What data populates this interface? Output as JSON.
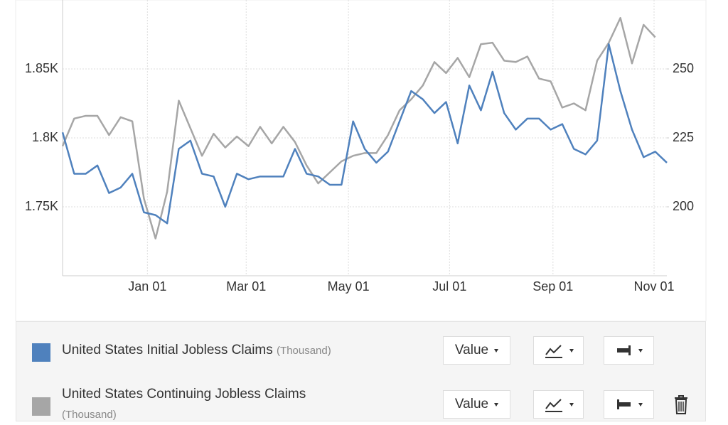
{
  "chart_data": {
    "type": "line",
    "x": [
      0,
      1,
      2,
      3,
      4,
      5,
      6,
      7,
      8,
      9,
      10,
      11,
      12,
      13,
      14,
      15,
      16,
      17,
      18,
      19,
      20,
      21,
      22,
      23,
      24,
      25,
      26,
      27,
      28,
      29,
      30,
      31,
      32,
      33,
      34,
      35,
      36,
      37,
      38,
      39,
      40,
      41,
      42,
      43,
      44,
      45,
      46,
      47,
      48,
      49,
      50,
      51,
      52
    ],
    "xlim": [
      0,
      52
    ],
    "xticks": [
      {
        "value": 7.3,
        "label": "Jan 01"
      },
      {
        "value": 15.8,
        "label": "Mar 01"
      },
      {
        "value": 24.6,
        "label": "May 01"
      },
      {
        "value": 33.3,
        "label": "Jul 01"
      },
      {
        "value": 42.2,
        "label": "Sep 01"
      },
      {
        "value": 50.9,
        "label": "Nov 01"
      }
    ],
    "ylim": [
      1700,
      1900
    ],
    "yticks": [
      {
        "value": 1750,
        "label": "1.75K"
      },
      {
        "value": 1800,
        "label": "1.8K"
      },
      {
        "value": 1850,
        "label": "1.85K"
      }
    ],
    "y2lim": [
      175,
      275
    ],
    "y2ticks": [
      200,
      225,
      250
    ],
    "grid": true,
    "unit": "(Thousand)",
    "series": [
      {
        "name": "United States Initial Jobless Claims",
        "color": "#4f81bd",
        "axis": "y2",
        "values": [
          227,
          212,
          212,
          215,
          205,
          207,
          212,
          198,
          197,
          194,
          221,
          224,
          212,
          211,
          200,
          212,
          210,
          211,
          211,
          211,
          221,
          212,
          211,
          208,
          208,
          231,
          221,
          216,
          220,
          231,
          242,
          239,
          234,
          238,
          223,
          244,
          235,
          249,
          234,
          228,
          232,
          232,
          228,
          230,
          221,
          219,
          224,
          259,
          242,
          228,
          218,
          220,
          216
        ]
      },
      {
        "name": "United States Continuing Jobless Claims",
        "color": "#a6a6a6",
        "values": [
          1794,
          1814,
          1816,
          1816,
          1802,
          1815,
          1812,
          1756,
          1727,
          1761,
          1827,
          1807,
          1787,
          1803,
          1793,
          1801,
          1794,
          1808,
          1796,
          1808,
          1797,
          1780,
          1767,
          1775,
          1783,
          1787,
          1789,
          1789,
          1802,
          1820,
          1828,
          1838,
          1855,
          1847,
          1858,
          1844,
          1868,
          1869,
          1856,
          1855,
          1859,
          1843,
          1841,
          1822,
          1825,
          1820,
          1856,
          1869,
          1887,
          1854,
          1882,
          1873,
          null
        ]
      }
    ]
  },
  "controls": [
    {
      "mode": "Value"
    },
    {
      "mode": "Value"
    }
  ]
}
